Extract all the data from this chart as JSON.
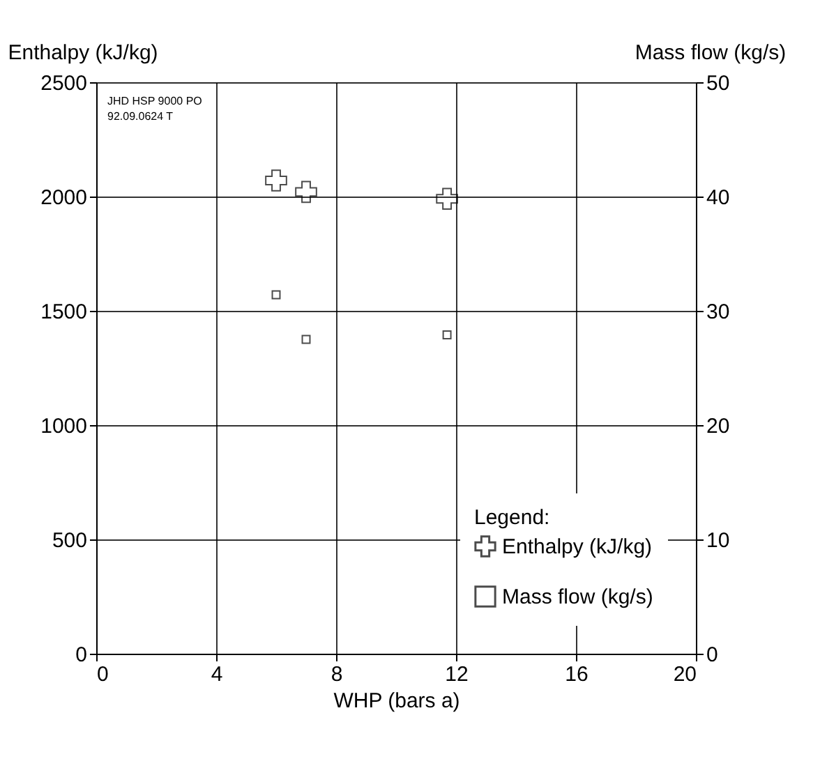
{
  "chart_data": {
    "type": "scatter",
    "xlabel": "WHP (bars a)",
    "ylabel": "Enthalpy (kJ/kg)",
    "y2label": "Mass flow (kg/s)",
    "legend_title": "Legend:",
    "annotations": [
      "JHD HSP 9000 PO\n92.09.0624 T"
    ],
    "series": [
      {
        "name": "Enthalpy (kJ/kg)",
        "color": "#000000",
        "marker": "cross",
        "x": [
          6,
          7,
          11.7
        ],
        "values": [
          2070,
          2020,
          1990
        ]
      },
      {
        "name": "Mass flow (kg/s)",
        "color": "#000000",
        "marker": "square",
        "axis": "y2",
        "x": [
          6,
          7,
          11.7
        ],
        "values": [
          31.4,
          27.5,
          27.9
        ]
      }
    ],
    "xlim": [
      0,
      20
    ],
    "xticks": [
      0,
      4,
      8,
      12,
      16,
      20
    ],
    "ylim": [
      0,
      2500
    ],
    "yticks": [
      0,
      500,
      1000,
      1500,
      2000,
      2500
    ],
    "y2lim": [
      0,
      50
    ],
    "y2ticks": [
      0,
      10,
      20,
      30,
      40,
      50
    ],
    "grid": true,
    "legend": "bottom right"
  }
}
